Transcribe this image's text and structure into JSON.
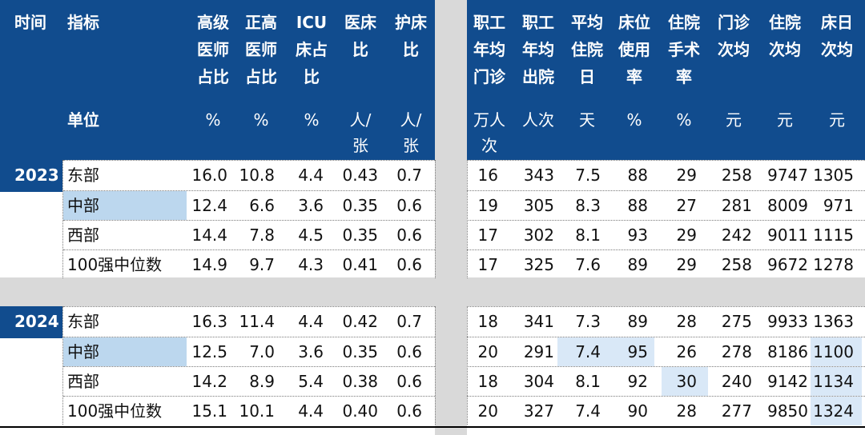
{
  "left_headers": [
    {
      "id": "time",
      "lines": [
        "时间"
      ],
      "unit": ""
    },
    {
      "id": "indicator",
      "lines": [
        "指标"
      ],
      "unit": "单位"
    },
    {
      "id": "senior_doctor_ratio",
      "lines": [
        "高级",
        "医师",
        "占比"
      ],
      "unit": "%"
    },
    {
      "id": "chief_doctor_ratio",
      "lines": [
        "正高",
        "医师",
        "占比"
      ],
      "unit": "%"
    },
    {
      "id": "icu_bed_ratio",
      "lines": [
        "ICU",
        "床占",
        "比"
      ],
      "unit": "%"
    },
    {
      "id": "doctor_bed_ratio",
      "lines": [
        "医床",
        "比"
      ],
      "unit": [
        "人/",
        "张"
      ]
    },
    {
      "id": "nurse_bed_ratio",
      "lines": [
        "护床",
        "比"
      ],
      "unit": [
        "人/",
        "张"
      ]
    }
  ],
  "right_headers": [
    {
      "id": "outpatient_per_staff",
      "lines": [
        "职工",
        "年均",
        "门诊"
      ],
      "unit": [
        "万人",
        "次"
      ]
    },
    {
      "id": "discharge_per_staff",
      "lines": [
        "职工",
        "年均",
        "出院"
      ],
      "unit": [
        "人次"
      ]
    },
    {
      "id": "avg_stay",
      "lines": [
        "平均",
        "住院",
        "日"
      ],
      "unit": [
        "天"
      ]
    },
    {
      "id": "bed_usage",
      "lines": [
        "床位",
        "使用",
        "率"
      ],
      "unit": [
        "%"
      ]
    },
    {
      "id": "surgery_rate",
      "lines": [
        "住院",
        "手术",
        "率"
      ],
      "unit": [
        "%"
      ]
    },
    {
      "id": "outpatient_cost",
      "lines": [
        "门诊",
        "次均"
      ],
      "unit": [
        "元"
      ]
    },
    {
      "id": "inpatient_cost",
      "lines": [
        "住院",
        "次均"
      ],
      "unit": [
        "元"
      ]
    },
    {
      "id": "bed_day_cost",
      "lines": [
        "床日",
        "次均"
      ],
      "unit": [
        "元"
      ]
    }
  ],
  "groups": [
    {
      "year": "2023",
      "rows": [
        {
          "region": "东部",
          "left": [
            "16.0",
            "10.8",
            "4.4",
            "0.43",
            "0.7"
          ],
          "right": [
            "16",
            "343",
            "7.5",
            "88",
            "29",
            "258",
            "9747",
            "1305"
          ]
        },
        {
          "region": "中部",
          "left": [
            "12.4",
            "6.6",
            "3.6",
            "0.35",
            "0.6"
          ],
          "right": [
            "19",
            "305",
            "8.3",
            "88",
            "27",
            "281",
            "8009",
            "971"
          ]
        },
        {
          "region": "西部",
          "left": [
            "14.4",
            "7.8",
            "4.5",
            "0.35",
            "0.6"
          ],
          "right": [
            "17",
            "302",
            "8.1",
            "93",
            "29",
            "242",
            "9011",
            "1115"
          ]
        },
        {
          "region": "100强中位数",
          "left": [
            "14.9",
            "9.7",
            "4.3",
            "0.41",
            "0.6"
          ],
          "right": [
            "17",
            "325",
            "7.6",
            "89",
            "29",
            "258",
            "9672",
            "1278"
          ]
        }
      ]
    },
    {
      "year": "2024",
      "rows": [
        {
          "region": "东部",
          "left": [
            "16.3",
            "11.4",
            "4.4",
            "0.42",
            "0.7"
          ],
          "right": [
            "18",
            "341",
            "7.3",
            "89",
            "28",
            "275",
            "9933",
            "1363"
          ]
        },
        {
          "region": "中部",
          "left": [
            "12.5",
            "7.0",
            "3.6",
            "0.35",
            "0.6"
          ],
          "right": [
            "20",
            "291",
            "7.4",
            "95",
            "26",
            "278",
            "8186",
            "1100"
          ]
        },
        {
          "region": "西部",
          "left": [
            "14.2",
            "8.9",
            "5.4",
            "0.38",
            "0.6"
          ],
          "right": [
            "18",
            "304",
            "8.1",
            "92",
            "30",
            "240",
            "9142",
            "1134"
          ]
        },
        {
          "region": "100强中位数",
          "left": [
            "15.1",
            "10.1",
            "4.4",
            "0.40",
            "0.6"
          ],
          "right": [
            "20",
            "327",
            "7.4",
            "90",
            "28",
            "277",
            "9850",
            "1324"
          ]
        }
      ]
    }
  ],
  "highlights": [
    {
      "group": 0,
      "row": 1,
      "side": "region"
    },
    {
      "group": 1,
      "row": 1,
      "side": "region"
    },
    {
      "group": 1,
      "row": 1,
      "side": "right",
      "col": 2
    },
    {
      "group": 1,
      "row": 1,
      "side": "right",
      "col": 3
    },
    {
      "group": 1,
      "row": 2,
      "side": "right",
      "col": 4
    },
    {
      "group": 1,
      "row": 1,
      "side": "right",
      "col": 7
    },
    {
      "group": 1,
      "row": 2,
      "side": "right",
      "col": 7
    },
    {
      "group": 1,
      "row": 3,
      "side": "right",
      "col": 7
    }
  ],
  "colors": {
    "header_bg": "#114c8e",
    "header_text": "#ffffff",
    "separator": "#d9d9d9",
    "highlight_region": "#bcd7ee",
    "highlight_cell": "#d9e8f7",
    "body_text": "#111111"
  }
}
